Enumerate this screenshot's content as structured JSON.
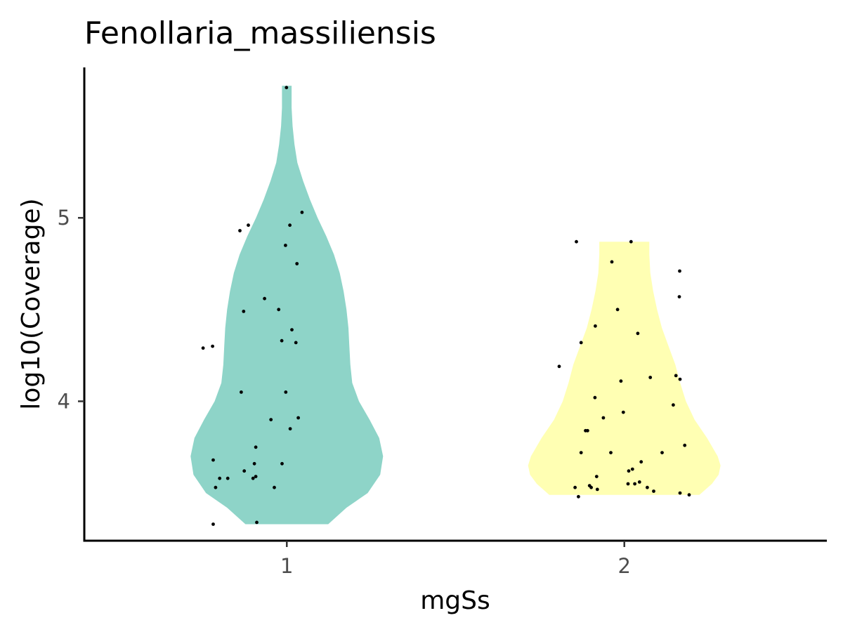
{
  "chart_data": {
    "type": "violin",
    "title": "Fenollaria_massiliensis",
    "xlabel": "mgSs",
    "ylabel": "log10(Coverage)",
    "categories": [
      "1",
      "2"
    ],
    "ylim": [
      3.24,
      5.82
    ],
    "yticks": [
      4,
      5
    ],
    "grid": false,
    "legend": "none",
    "series": [
      {
        "category": "1",
        "color": "#8ED4C8",
        "violin": {
          "y": [
            3.33,
            3.42,
            3.5,
            3.6,
            3.7,
            3.8,
            3.9,
            4.0,
            4.1,
            4.2,
            4.3,
            4.4,
            4.5,
            4.6,
            4.7,
            4.8,
            4.9,
            5.0,
            5.1,
            5.2,
            5.3,
            5.4,
            5.5,
            5.6,
            5.72
          ],
          "density": [
            0.43,
            0.62,
            0.84,
            0.97,
            1.0,
            0.96,
            0.86,
            0.75,
            0.68,
            0.66,
            0.65,
            0.64,
            0.62,
            0.59,
            0.55,
            0.49,
            0.41,
            0.32,
            0.24,
            0.17,
            0.11,
            0.08,
            0.06,
            0.05,
            0.05
          ]
        },
        "points": [
          [
            0.999,
            5.71
          ],
          [
            1.045,
            5.03
          ],
          [
            0.886,
            4.96
          ],
          [
            1.009,
            4.96
          ],
          [
            0.861,
            4.93
          ],
          [
            0.996,
            4.85
          ],
          [
            1.03,
            4.75
          ],
          [
            0.934,
            4.56
          ],
          [
            0.872,
            4.49
          ],
          [
            0.976,
            4.5
          ],
          [
            1.015,
            4.39
          ],
          [
            0.985,
            4.33
          ],
          [
            1.027,
            4.32
          ],
          [
            0.78,
            4.3
          ],
          [
            0.752,
            4.29
          ],
          [
            0.865,
            4.05
          ],
          [
            0.997,
            4.05
          ],
          [
            0.953,
            3.9
          ],
          [
            1.034,
            3.91
          ],
          [
            1.01,
            3.85
          ],
          [
            0.908,
            3.75
          ],
          [
            0.782,
            3.68
          ],
          [
            0.904,
            3.66
          ],
          [
            0.986,
            3.66
          ],
          [
            0.874,
            3.62
          ],
          [
            0.801,
            3.58
          ],
          [
            0.9,
            3.58
          ],
          [
            0.825,
            3.58
          ],
          [
            0.908,
            3.59
          ],
          [
            0.963,
            3.53
          ],
          [
            0.789,
            3.53
          ],
          [
            0.782,
            3.33
          ],
          [
            0.911,
            3.34
          ]
        ]
      },
      {
        "category": "2",
        "color": "#FFFFB3",
        "violin": {
          "y": [
            3.49,
            3.55,
            3.6,
            3.65,
            3.7,
            3.8,
            3.9,
            4.0,
            4.1,
            4.2,
            4.3,
            4.4,
            4.5,
            4.6,
            4.7,
            4.8,
            4.87
          ],
          "density": [
            0.78,
            0.91,
            0.98,
            1.0,
            0.97,
            0.86,
            0.73,
            0.64,
            0.58,
            0.53,
            0.46,
            0.39,
            0.34,
            0.3,
            0.27,
            0.26,
            0.26
          ]
        },
        "points": [
          [
            1.858,
            4.87
          ],
          [
            2.02,
            4.87
          ],
          [
            1.963,
            4.76
          ],
          [
            2.164,
            4.71
          ],
          [
            2.163,
            4.57
          ],
          [
            1.98,
            4.5
          ],
          [
            1.914,
            4.41
          ],
          [
            2.04,
            4.37
          ],
          [
            1.872,
            4.32
          ],
          [
            1.807,
            4.19
          ],
          [
            2.153,
            4.14
          ],
          [
            2.165,
            4.12
          ],
          [
            2.077,
            4.13
          ],
          [
            1.99,
            4.11
          ],
          [
            1.913,
            4.02
          ],
          [
            2.145,
            3.98
          ],
          [
            1.997,
            3.94
          ],
          [
            1.938,
            3.91
          ],
          [
            1.885,
            3.84
          ],
          [
            1.891,
            3.84
          ],
          [
            1.872,
            3.72
          ],
          [
            1.96,
            3.72
          ],
          [
            2.112,
            3.72
          ],
          [
            2.179,
            3.76
          ],
          [
            2.05,
            3.67
          ],
          [
            2.024,
            3.63
          ],
          [
            2.013,
            3.62
          ],
          [
            1.918,
            3.59
          ],
          [
            2.045,
            3.56
          ],
          [
            2.011,
            3.55
          ],
          [
            2.031,
            3.55
          ],
          [
            2.068,
            3.53
          ],
          [
            1.854,
            3.53
          ],
          [
            1.897,
            3.54
          ],
          [
            1.92,
            3.52
          ],
          [
            2.087,
            3.51
          ],
          [
            2.165,
            3.5
          ],
          [
            1.902,
            3.53
          ],
          [
            2.192,
            3.49
          ],
          [
            1.864,
            3.48
          ]
        ]
      }
    ]
  }
}
